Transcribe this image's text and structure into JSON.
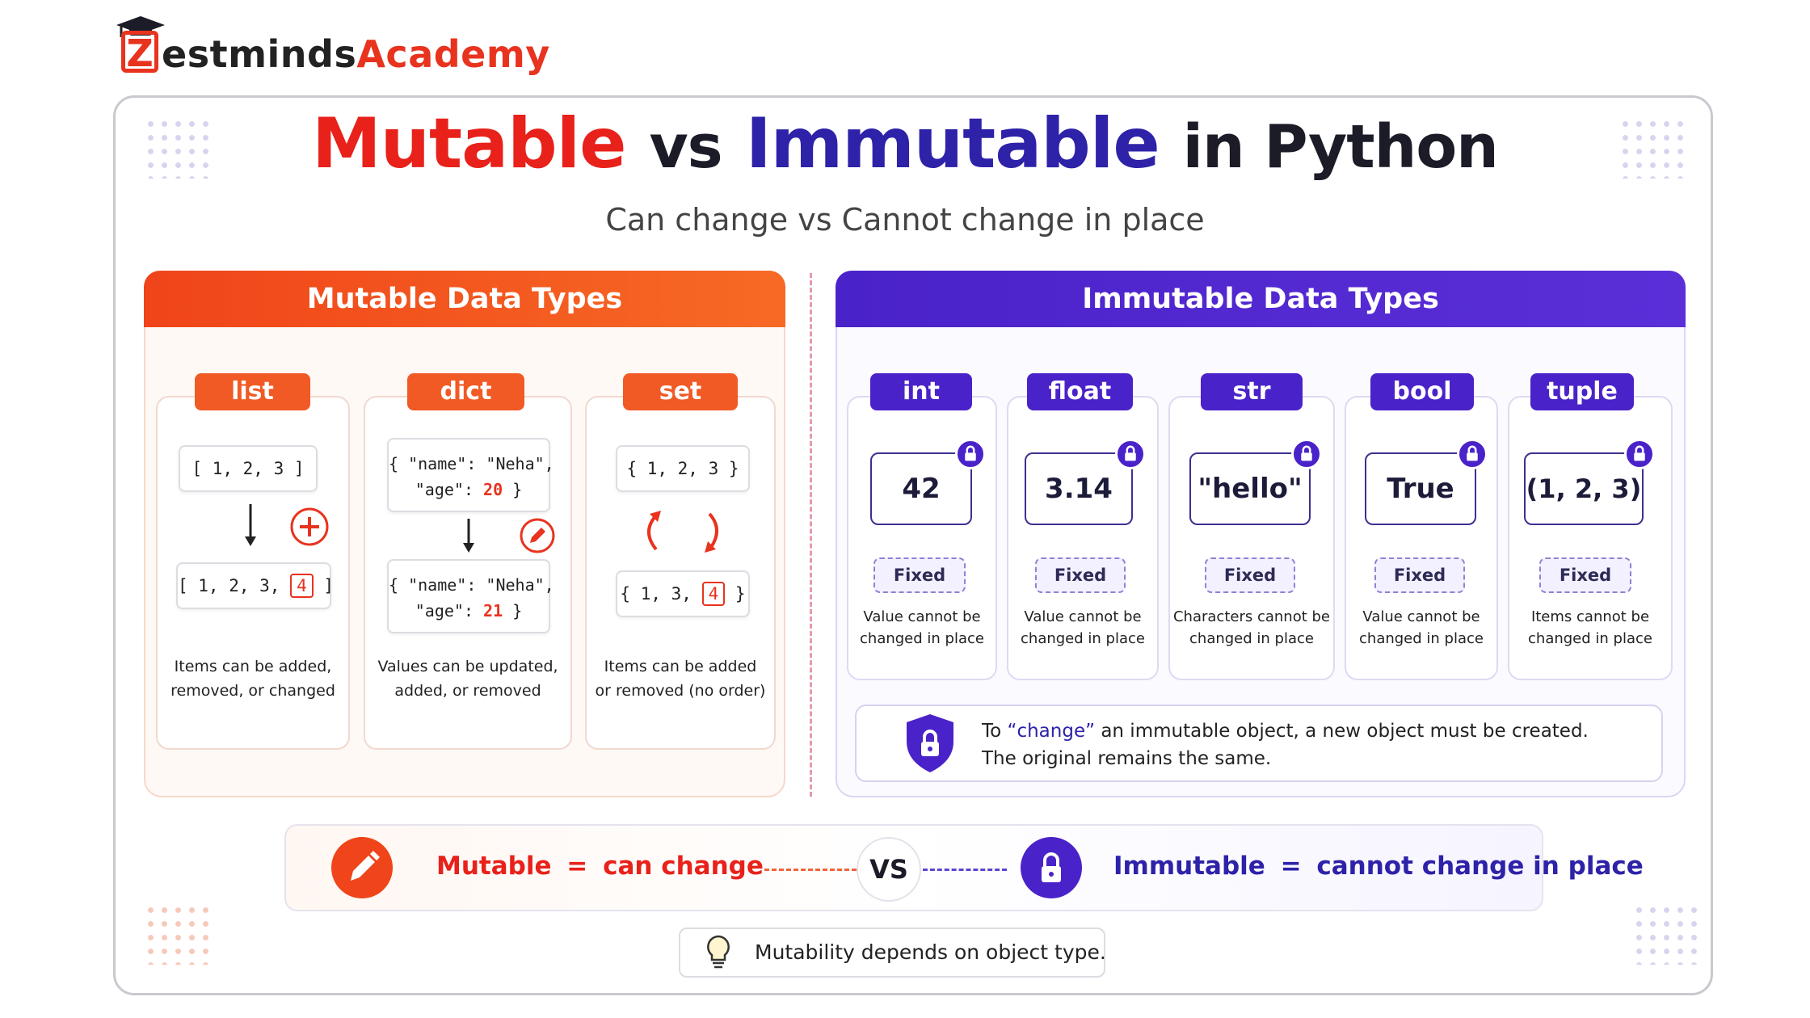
{
  "logo": {
    "part1": "estminds",
    "part2": "Academy",
    "z": "Z"
  },
  "title": {
    "mutable": "Mutable",
    "vs": "vs",
    "immutable": "Immutable",
    "in_python": "in Python"
  },
  "subtitle": "Can change vs Cannot change in place",
  "mutable": {
    "header": "Mutable Data Types",
    "cards": [
      {
        "tag": "list",
        "before": "[ 1, 2, 3 ]",
        "after_prefix": "[ 1, 2, 3,",
        "after_value": "4",
        "after_suffix": "]",
        "desc1": "Items can be added,",
        "desc2": "removed, or changed"
      },
      {
        "tag": "dict",
        "before1": "{ \"name\": \"Neha\",",
        "before2_prefix": "\"age\":",
        "before2_value": "20",
        "before2_suffix": "}",
        "after1": "{ \"name\": \"Neha\",",
        "after2_prefix": "\"age\":",
        "after2_value": "21",
        "after2_suffix": "}",
        "desc1": "Values can be updated,",
        "desc2": "added, or removed"
      },
      {
        "tag": "set",
        "before": "{ 1, 2, 3 }",
        "after_prefix": "{ 1, 3,",
        "after_value": "4",
        "after_suffix": "}",
        "desc1": "Items can be added",
        "desc2": "or removed (no order)"
      }
    ]
  },
  "immutable": {
    "header": "Immutable Data Types",
    "cards": [
      {
        "tag": "int",
        "value": "42",
        "badge": "Fixed",
        "desc1": "Value cannot be",
        "desc2": "changed in place"
      },
      {
        "tag": "float",
        "value": "3.14",
        "badge": "Fixed",
        "desc1": "Value cannot be",
        "desc2": "changed in place"
      },
      {
        "tag": "str",
        "value": "\"hello\"",
        "badge": "Fixed",
        "desc1": "Characters cannot be",
        "desc2": "changed in place"
      },
      {
        "tag": "bool",
        "value": "True",
        "badge": "Fixed",
        "desc1": "Value cannot be",
        "desc2": "changed in place"
      },
      {
        "tag": "tuple",
        "value": "(1, 2, 3)",
        "badge": "Fixed",
        "desc1": "Items cannot be",
        "desc2": "changed in place"
      }
    ],
    "note_line1_prefix": "To ",
    "note_line1_em": "“change”",
    "note_line1_suffix": " an immutable object, a new object must be created.",
    "note_line2": "The original remains the same."
  },
  "bottom": {
    "mutable_word": "Mutable",
    "mutable_eq": "=",
    "mutable_def": "can change",
    "vs": "VS",
    "immutable_word": "Immutable",
    "immutable_eq": "=",
    "immutable_def": "cannot change in place"
  },
  "tip": "Mutability depends on object type.",
  "icons": [
    "graduation-cap-icon",
    "plus-icon",
    "pencil-icon",
    "cycle-arrows-icon",
    "lock-icon",
    "shield-lock-icon",
    "lightbulb-icon"
  ],
  "colors": {
    "orange": "#f15a24",
    "red": "#e8211a",
    "purple": "#4a22c9",
    "navy": "#2d22a8"
  }
}
